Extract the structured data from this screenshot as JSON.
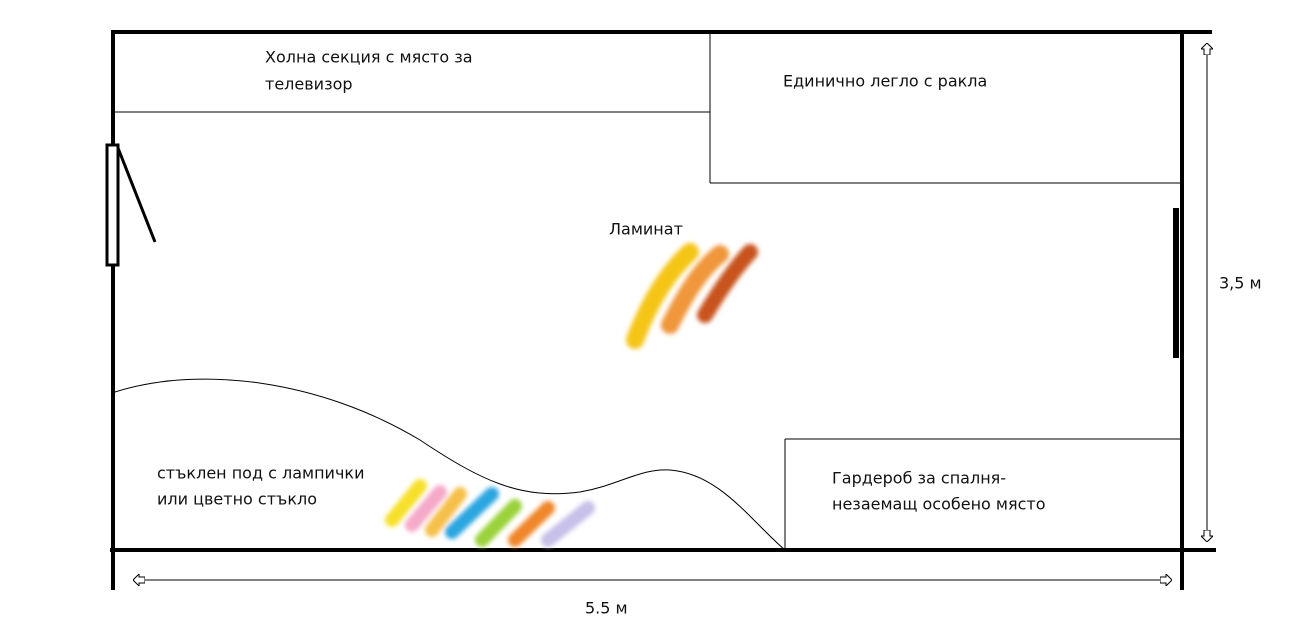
{
  "labels": {
    "tv_unit": [
      "Холна секция с място за",
      "телевизор"
    ],
    "bed": [
      "Единично легло с ракла"
    ],
    "laminate": [
      "Ламинат"
    ],
    "glass_floor": [
      "стъклен под с лампички",
      "или цветно стъкло"
    ],
    "wardrobe": [
      "Гардероб за спалня-",
      "незаемащ особено място"
    ]
  },
  "dimensions": {
    "height": "3,5 м",
    "width": "5.5 м"
  }
}
